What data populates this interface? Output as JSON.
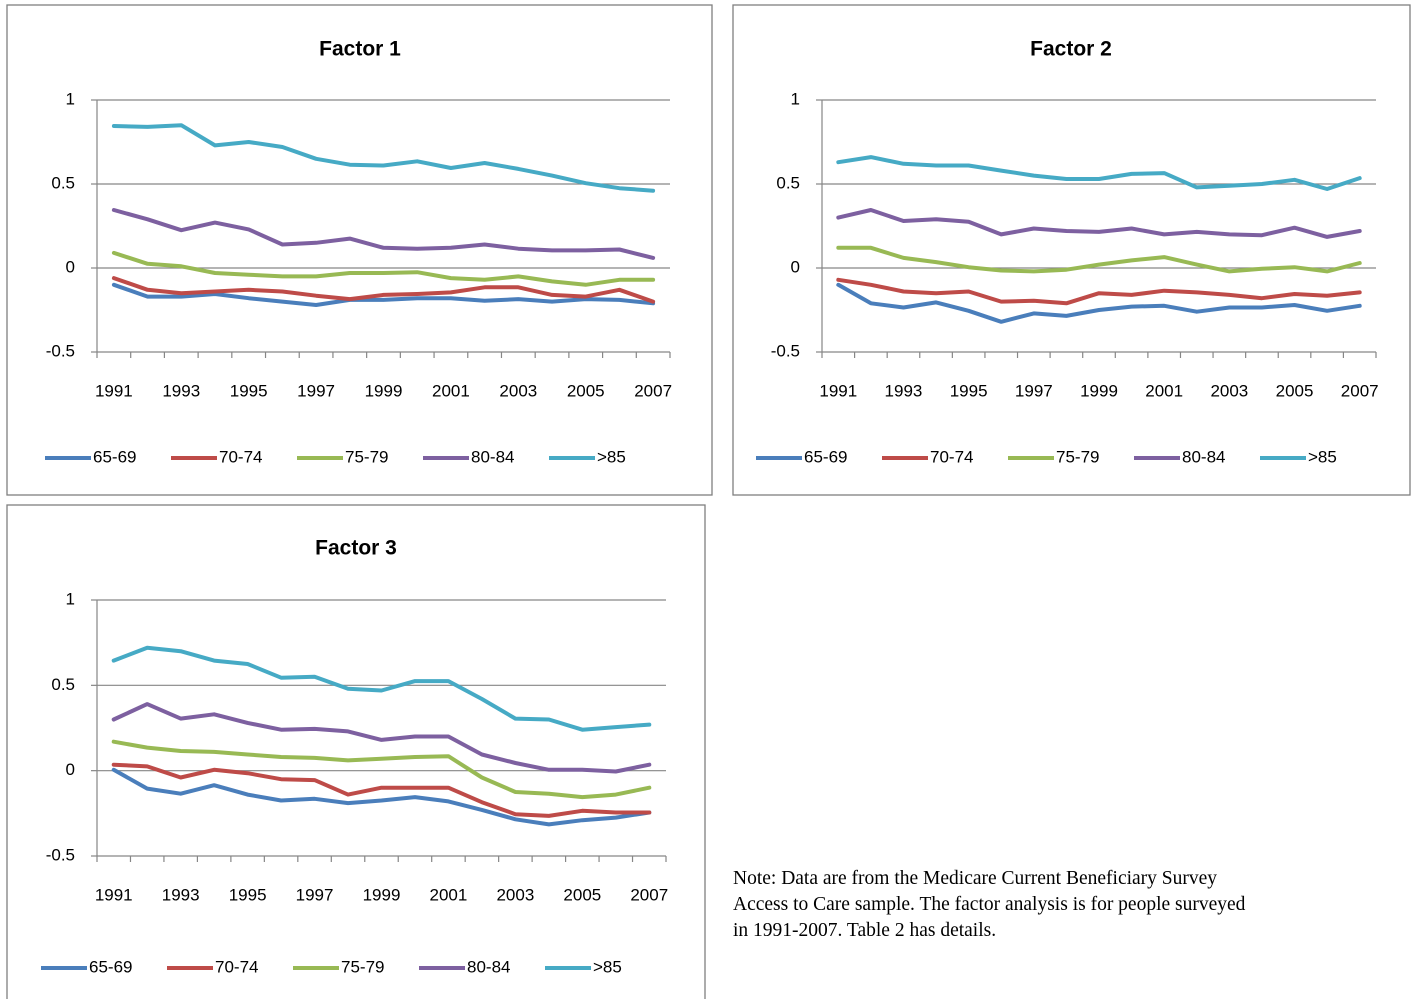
{
  "chart_data": [
    {
      "type": "line",
      "title": "Factor 1",
      "categories": [
        "1991",
        null,
        "1993",
        null,
        "1995",
        null,
        "1997",
        null,
        "1999",
        null,
        "2001",
        null,
        "2003",
        null,
        "2005",
        null,
        "2007"
      ],
      "ylim": [
        -0.5,
        1
      ],
      "yticks": [
        -0.5,
        0,
        0.5,
        1
      ],
      "grid": true,
      "legend": "bottom",
      "series": [
        {
          "name": "65-69",
          "color": "#4a7ebb",
          "values": [
            -0.1,
            -0.17,
            -0.17,
            -0.155,
            -0.18,
            -0.2,
            -0.22,
            -0.19,
            -0.19,
            -0.18,
            -0.18,
            -0.195,
            -0.185,
            -0.2,
            -0.185,
            -0.19,
            -0.21
          ]
        },
        {
          "name": "70-74",
          "color": "#be4b48",
          "values": [
            -0.06,
            -0.13,
            -0.15,
            -0.14,
            -0.13,
            -0.14,
            -0.165,
            -0.185,
            -0.16,
            -0.155,
            -0.145,
            -0.115,
            -0.115,
            -0.16,
            -0.17,
            -0.13,
            -0.2
          ]
        },
        {
          "name": "75-79",
          "color": "#98b954",
          "values": [
            0.09,
            0.025,
            0.01,
            -0.03,
            -0.04,
            -0.05,
            -0.05,
            -0.03,
            -0.03,
            -0.025,
            -0.06,
            -0.07,
            -0.05,
            -0.08,
            -0.1,
            -0.07,
            -0.07
          ]
        },
        {
          "name": "80-84",
          "color": "#7d60a0",
          "values": [
            0.345,
            0.29,
            0.225,
            0.27,
            0.23,
            0.14,
            0.15,
            0.175,
            0.12,
            0.115,
            0.12,
            0.14,
            0.115,
            0.105,
            0.105,
            0.11,
            0.06
          ]
        },
        {
          "name": ">85",
          "color": "#46aac5",
          "values": [
            0.845,
            0.84,
            0.85,
            0.73,
            0.75,
            0.72,
            0.65,
            0.615,
            0.61,
            0.635,
            0.595,
            0.625,
            0.59,
            0.55,
            0.505,
            0.475,
            0.46
          ]
        }
      ]
    },
    {
      "type": "line",
      "title": "Factor 2",
      "categories": [
        "1991",
        null,
        "1993",
        null,
        "1995",
        null,
        "1997",
        null,
        "1999",
        null,
        "2001",
        null,
        "2003",
        null,
        "2005",
        null,
        "2007"
      ],
      "ylim": [
        -0.5,
        1
      ],
      "yticks": [
        -0.5,
        0,
        0.5,
        1
      ],
      "grid": true,
      "legend": "bottom",
      "series": [
        {
          "name": "65-69",
          "color": "#4a7ebb",
          "values": [
            -0.1,
            -0.21,
            -0.235,
            -0.205,
            -0.255,
            -0.32,
            -0.27,
            -0.285,
            -0.25,
            -0.23,
            -0.225,
            -0.26,
            -0.235,
            -0.235,
            -0.22,
            -0.255,
            -0.225
          ]
        },
        {
          "name": "70-74",
          "color": "#be4b48",
          "values": [
            -0.07,
            -0.1,
            -0.14,
            -0.15,
            -0.14,
            -0.2,
            -0.195,
            -0.21,
            -0.15,
            -0.16,
            -0.135,
            -0.145,
            -0.16,
            -0.18,
            -0.155,
            -0.165,
            -0.145
          ]
        },
        {
          "name": "75-79",
          "color": "#98b954",
          "values": [
            0.12,
            0.12,
            0.06,
            0.035,
            0.005,
            -0.015,
            -0.02,
            -0.01,
            0.02,
            0.045,
            0.065,
            0.02,
            -0.02,
            -0.005,
            0.005,
            -0.02,
            0.03
          ]
        },
        {
          "name": "80-84",
          "color": "#7d60a0",
          "values": [
            0.3,
            0.345,
            0.28,
            0.29,
            0.275,
            0.2,
            0.235,
            0.22,
            0.215,
            0.235,
            0.2,
            0.215,
            0.2,
            0.195,
            0.24,
            0.185,
            0.22
          ]
        },
        {
          "name": ">85",
          "color": "#46aac5",
          "values": [
            0.63,
            0.66,
            0.62,
            0.61,
            0.61,
            0.58,
            0.55,
            0.53,
            0.53,
            0.56,
            0.565,
            0.48,
            0.49,
            0.5,
            0.525,
            0.47,
            0.535
          ]
        }
      ]
    },
    {
      "type": "line",
      "title": "Factor 3",
      "categories": [
        "1991",
        null,
        "1993",
        null,
        "1995",
        null,
        "1997",
        null,
        "1999",
        null,
        "2001",
        null,
        "2003",
        null,
        "2005",
        null,
        "2007"
      ],
      "ylim": [
        -0.5,
        1
      ],
      "yticks": [
        -0.5,
        0,
        0.5,
        1
      ],
      "grid": true,
      "legend": "bottom",
      "series": [
        {
          "name": "65-69",
          "color": "#4a7ebb",
          "values": [
            0.005,
            -0.105,
            -0.135,
            -0.085,
            -0.14,
            -0.175,
            -0.165,
            -0.19,
            -0.175,
            -0.155,
            -0.18,
            -0.23,
            -0.285,
            -0.315,
            -0.29,
            -0.275,
            -0.245
          ]
        },
        {
          "name": "70-74",
          "color": "#be4b48",
          "values": [
            0.035,
            0.025,
            -0.04,
            0.005,
            -0.015,
            -0.05,
            -0.055,
            -0.14,
            -0.1,
            -0.1,
            -0.1,
            -0.185,
            -0.255,
            -0.265,
            -0.235,
            -0.245,
            -0.245
          ]
        },
        {
          "name": "75-79",
          "color": "#98b954",
          "values": [
            0.17,
            0.135,
            0.115,
            0.11,
            0.095,
            0.08,
            0.075,
            0.06,
            0.07,
            0.08,
            0.085,
            -0.04,
            -0.125,
            -0.135,
            -0.155,
            -0.14,
            -0.1
          ]
        },
        {
          "name": "80-84",
          "color": "#7d60a0",
          "values": [
            0.3,
            0.39,
            0.305,
            0.33,
            0.28,
            0.24,
            0.245,
            0.23,
            0.18,
            0.2,
            0.2,
            0.095,
            0.045,
            0.005,
            0.005,
            -0.005,
            0.035
          ]
        },
        {
          "name": ">85",
          "color": "#46aac5",
          "values": [
            0.645,
            0.72,
            0.7,
            0.645,
            0.625,
            0.545,
            0.55,
            0.48,
            0.47,
            0.525,
            0.525,
            0.42,
            0.305,
            0.3,
            0.24,
            0.255,
            0.27
          ]
        }
      ]
    }
  ],
  "note": "Note: Data are from the Medicare Current Beneficiary Survey Access to Care sample.  The factor analysis is for people surveyed in 1991-2007.  Table 2 has details."
}
